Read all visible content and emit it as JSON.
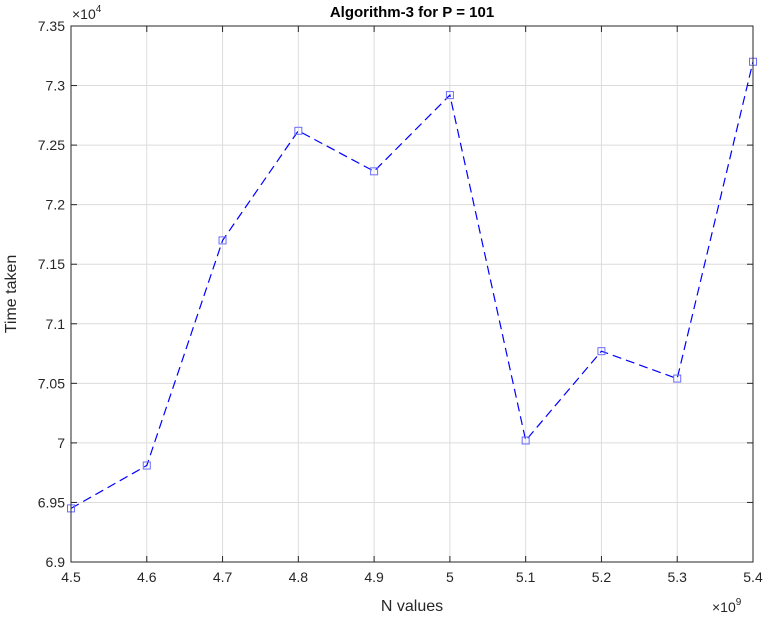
{
  "chart_data": {
    "type": "line",
    "title": "Algorithm-3 for P = 101",
    "xlabel": "N values",
    "ylabel": "Time taken",
    "x_exponent": "×10",
    "x_exponent_power": "9",
    "y_exponent": "×10",
    "y_exponent_power": "4",
    "xlim": [
      4.5,
      5.4
    ],
    "ylim": [
      6.9,
      7.35
    ],
    "x_ticks": [
      "4.5",
      "4.6",
      "4.7",
      "4.8",
      "4.9",
      "5",
      "5.1",
      "5.2",
      "5.3",
      "5.4"
    ],
    "y_ticks": [
      "6.9",
      "6.95",
      "7",
      "7.05",
      "7.1",
      "7.15",
      "7.2",
      "7.25",
      "7.3",
      "7.35"
    ],
    "grid": true,
    "series": [
      {
        "line_style": "dashed",
        "marker": "square",
        "color": "#0000ff",
        "x": [
          4.5,
          4.6,
          4.7,
          4.8,
          4.9,
          5.0,
          5.1,
          5.2,
          5.3,
          5.4
        ],
        "y": [
          6.945,
          6.981,
          7.17,
          7.262,
          7.228,
          7.292,
          7.002,
          7.077,
          7.054,
          7.32
        ]
      }
    ]
  }
}
